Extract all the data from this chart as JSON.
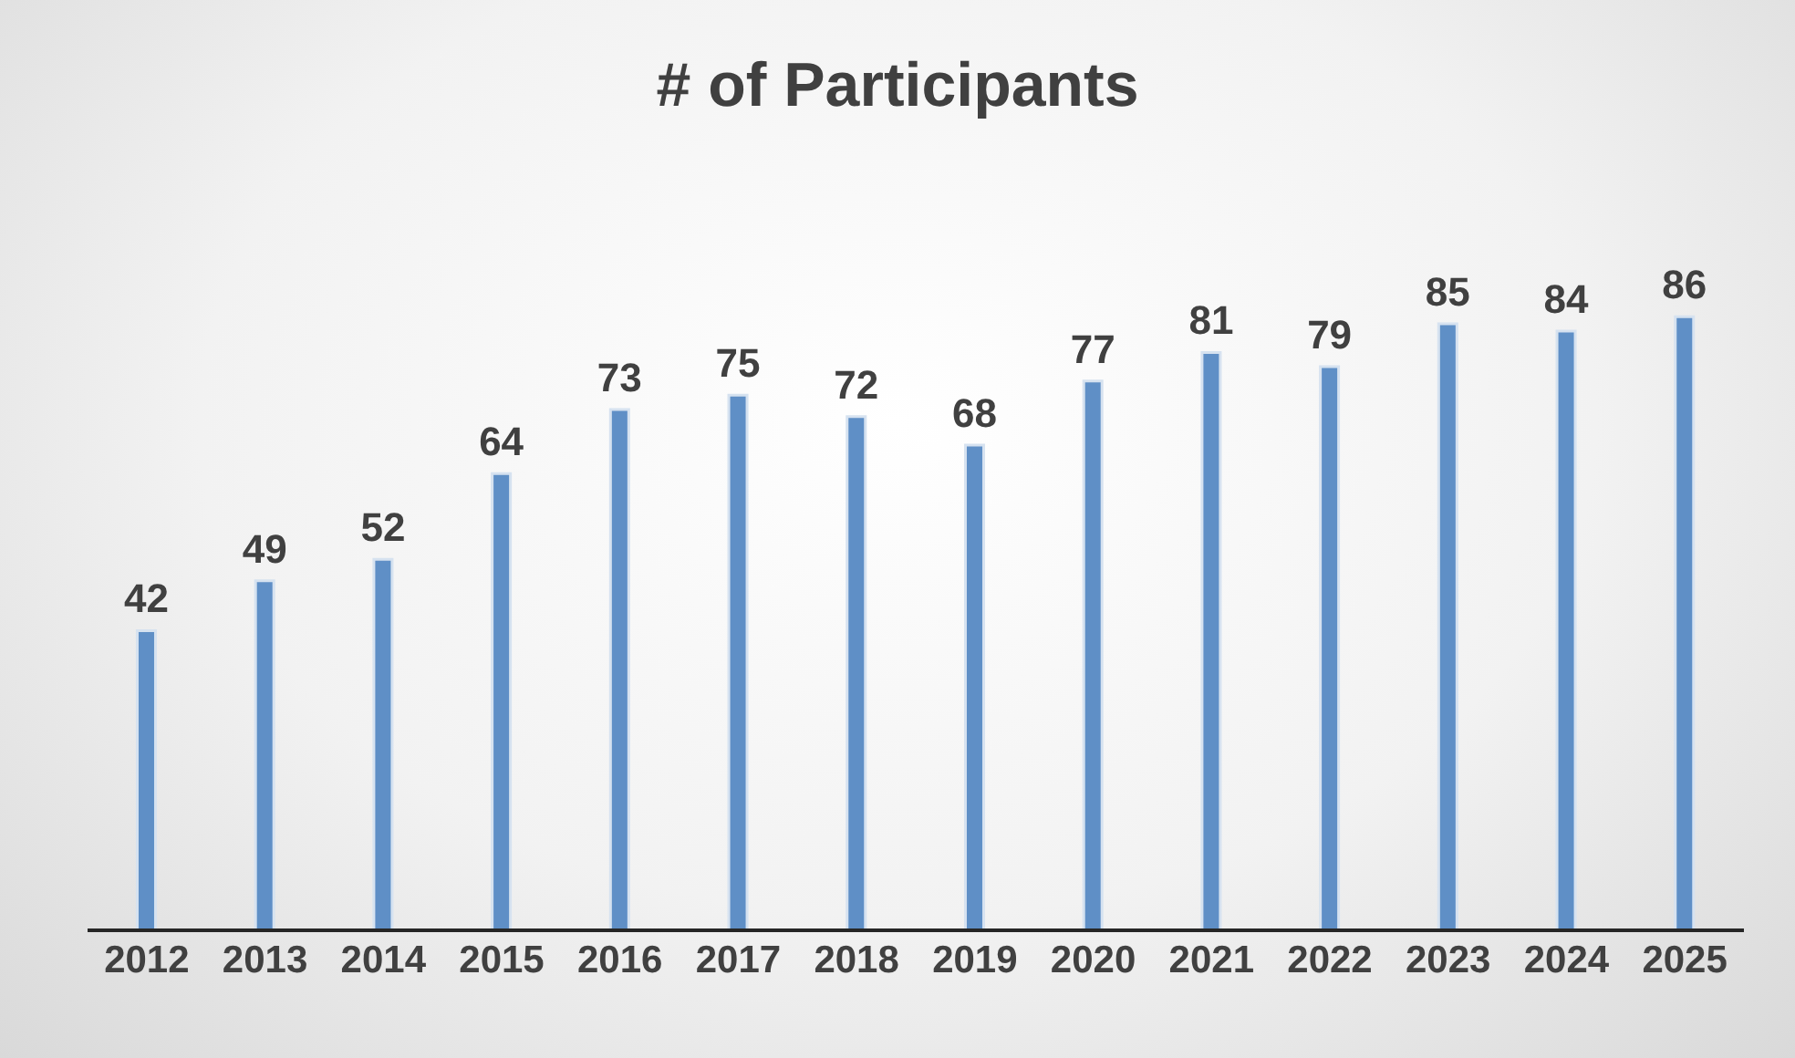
{
  "chart_data": {
    "type": "bar",
    "title": "# of Participants",
    "categories": [
      "2012",
      "2013",
      "2014",
      "2015",
      "2016",
      "2017",
      "2018",
      "2019",
      "2020",
      "2021",
      "2022",
      "2023",
      "2024",
      "2025"
    ],
    "values": [
      42,
      49,
      52,
      64,
      73,
      75,
      72,
      68,
      77,
      81,
      79,
      85,
      84,
      86
    ],
    "color": "#5f8fc6",
    "data_labels": true
  }
}
